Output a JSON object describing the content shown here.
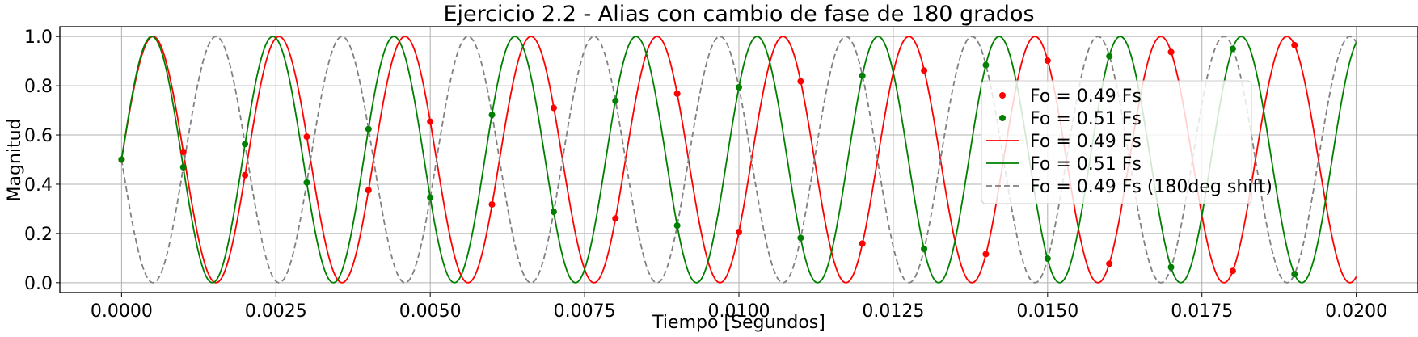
{
  "chart_data": {
    "type": "line",
    "title": "Ejercicio 2.2 - Alias con cambio de fase de 180 grados",
    "xlabel": "Tiempo [Segundos]",
    "ylabel": "Magnitud",
    "xlim": [
      -0.001,
      0.021
    ],
    "ylim": [
      -0.04,
      1.04
    ],
    "x_ticks": [
      "0.0000",
      "0.0025",
      "0.0050",
      "0.0075",
      "0.0100",
      "0.0125",
      "0.0150",
      "0.0175",
      "0.0200"
    ],
    "y_ticks": [
      "0.0",
      "0.2",
      "0.4",
      "0.6",
      "0.8",
      "1.0"
    ],
    "grid": true,
    "legend_position": "center-right",
    "series": [
      {
        "name": "Fo = 0.49 Fs",
        "kind": "samples",
        "color": "#ff0000",
        "x": [
          0,
          0.001,
          0.002,
          0.003,
          0.004,
          0.005,
          0.006,
          0.007,
          0.008,
          0.009,
          0.01,
          0.011,
          0.012,
          0.013,
          0.014,
          0.015,
          0.016,
          0.017,
          0.018,
          0.019
        ],
        "y": [
          0.5,
          0.531,
          0.437,
          0.593,
          0.376,
          0.654,
          0.318,
          0.71,
          0.261,
          0.768,
          0.206,
          0.818,
          0.159,
          0.862,
          0.116,
          0.902,
          0.077,
          0.937,
          0.048,
          0.965
        ]
      },
      {
        "name": "Fo = 0.51 Fs",
        "kind": "samples",
        "color": "#008000",
        "x": [
          0,
          0.001,
          0.002,
          0.003,
          0.004,
          0.005,
          0.006,
          0.007,
          0.008,
          0.009,
          0.01,
          0.011,
          0.012,
          0.013,
          0.014,
          0.015,
          0.016,
          0.017,
          0.018,
          0.019
        ],
        "y": [
          0.5,
          0.469,
          0.563,
          0.407,
          0.624,
          0.346,
          0.682,
          0.288,
          0.739,
          0.232,
          0.794,
          0.182,
          0.841,
          0.138,
          0.884,
          0.098,
          0.92,
          0.063,
          0.95,
          0.035
        ]
      },
      {
        "name": "Fo = 0.49 Fs",
        "kind": "line",
        "color": "#ff0000",
        "frequency_hz": 490,
        "phase_deg": 0,
        "x_range": [
          0,
          0.02
        ]
      },
      {
        "name": "Fo = 0.51 Fs",
        "kind": "line",
        "color": "#008000",
        "frequency_hz": 510,
        "phase_deg": 0,
        "x_range": [
          0,
          0.02
        ]
      },
      {
        "name": "Fo = 0.49 Fs (180deg shift)",
        "kind": "dashed-line",
        "color": "#808080",
        "frequency_hz": 490,
        "phase_deg": 180,
        "x_range": [
          0,
          0.02
        ]
      }
    ]
  }
}
